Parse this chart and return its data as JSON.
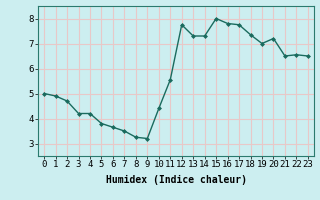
{
  "x": [
    0,
    1,
    2,
    3,
    4,
    5,
    6,
    7,
    8,
    9,
    10,
    11,
    12,
    13,
    14,
    15,
    16,
    17,
    18,
    19,
    20,
    21,
    22,
    23
  ],
  "y": [
    5.0,
    4.9,
    4.7,
    4.2,
    4.2,
    3.8,
    3.65,
    3.5,
    3.25,
    3.2,
    4.4,
    5.55,
    7.75,
    7.3,
    7.3,
    8.0,
    7.8,
    7.75,
    7.35,
    7.0,
    7.2,
    6.5,
    6.55,
    6.5
  ],
  "line_color": "#1a6b5e",
  "marker": "D",
  "marker_size": 2.0,
  "linewidth": 1.0,
  "bg_color": "#cceef0",
  "grid_color": "#e8c8c8",
  "xlabel": "Humidex (Indice chaleur)",
  "xlabel_fontsize": 7,
  "tick_fontsize": 6.5,
  "ylim": [
    2.5,
    8.5
  ],
  "xlim": [
    -0.5,
    23.5
  ],
  "yticks": [
    3,
    4,
    5,
    6,
    7,
    8
  ],
  "xticks": [
    0,
    1,
    2,
    3,
    4,
    5,
    6,
    7,
    8,
    9,
    10,
    11,
    12,
    13,
    14,
    15,
    16,
    17,
    18,
    19,
    20,
    21,
    22,
    23
  ]
}
